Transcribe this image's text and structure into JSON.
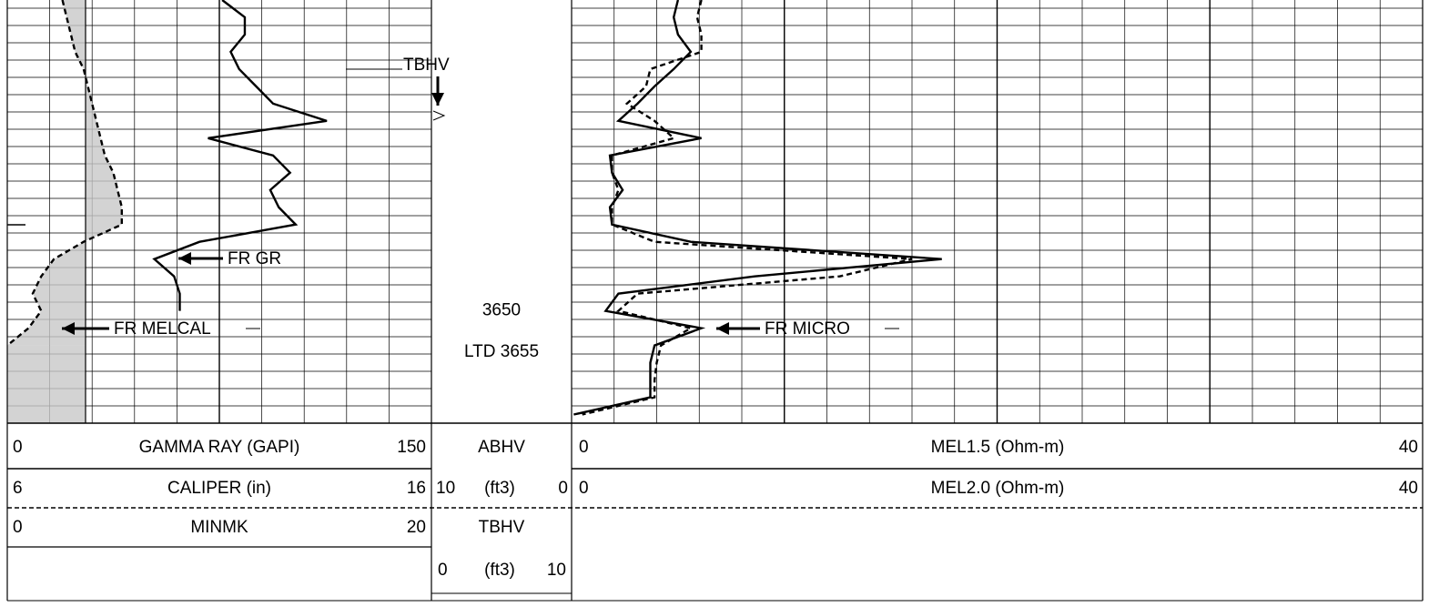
{
  "chart_data": {
    "type": "well_log",
    "depth_lim": [
      3614,
      3663
    ],
    "depth_ticks": [
      3650
    ],
    "annotations": {
      "tbhv": "TBHV",
      "fr_gr": "FR GR",
      "fr_melcal": "FR MELCAL",
      "fr_micro": "FR MICRO",
      "ltd": "LTD 3655"
    },
    "left_track": {
      "curves": [
        {
          "name": "GAMMA RAY (GAPI)",
          "lim": [
            0,
            150
          ],
          "dash": false,
          "color": "#000000",
          "depths": [
            3614,
            3616,
            3618,
            3620,
            3622,
            3624,
            3626,
            3628,
            3630,
            3632,
            3634,
            3636,
            3638,
            3640,
            3642,
            3644,
            3646,
            3648,
            3650
          ],
          "values": [
            76,
            84,
            84,
            79,
            82,
            88,
            94,
            113,
            71,
            94,
            100,
            93,
            96,
            102,
            68,
            52,
            59,
            61,
            61
          ]
        },
        {
          "name": "CALIPER (in)",
          "lim": [
            6,
            16
          ],
          "dash": true,
          "color": "#000000",
          "depths": [
            3614,
            3616,
            3618,
            3620,
            3622,
            3624,
            3626,
            3628,
            3630,
            3632,
            3634,
            3636,
            3638,
            3640,
            3642,
            3644,
            3646,
            3648,
            3650,
            3652,
            3654
          ],
          "values": [
            7.3,
            7.4,
            7.5,
            7.6,
            7.8,
            7.9,
            8.0,
            8.1,
            8.2,
            8.3,
            8.5,
            8.6,
            8.7,
            8.7,
            7.8,
            7.1,
            6.8,
            6.6,
            6.8,
            6.5,
            6.0
          ]
        }
      ],
      "extra": {
        "name": "MINMK",
        "lim": [
          0,
          20
        ]
      }
    },
    "depth_track": {
      "abhv": {
        "name": "ABHV",
        "unit": "(ft3)",
        "lim": [
          10,
          0
        ]
      },
      "tbhv": {
        "name": "TBHV",
        "unit": "(ft3)",
        "lim": [
          0,
          10
        ]
      }
    },
    "right_track": {
      "curves": [
        {
          "name": "MEL1.5 (Ohm-m)",
          "lim": [
            0,
            40
          ],
          "dash": false,
          "color": "#000000",
          "depths": [
            3614,
            3616,
            3618,
            3620,
            3622,
            3624,
            3626,
            3628,
            3630,
            3632,
            3634,
            3636,
            3638,
            3640,
            3642,
            3644,
            3646,
            3648,
            3650,
            3652,
            3654,
            3656,
            3658,
            3660,
            3662
          ],
          "values": [
            5.0,
            4.8,
            5.0,
            5.6,
            4.8,
            3.9,
            3.1,
            2.2,
            6.1,
            1.8,
            1.9,
            2.4,
            1.8,
            1.9,
            5.6,
            17.4,
            8.6,
            2.2,
            1.6,
            6.1,
            3.9,
            3.7,
            3.7,
            3.7,
            0.1
          ]
        },
        {
          "name": "MEL2.0 (Ohm-m)",
          "lim": [
            0,
            40
          ],
          "dash": true,
          "color": "#000000",
          "depths": [
            3614,
            3616,
            3618,
            3620,
            3622,
            3624,
            3626,
            3628,
            3630,
            3632,
            3634,
            3636,
            3638,
            3640,
            3642,
            3644,
            3646,
            3648,
            3650,
            3652,
            3654,
            3656,
            3658,
            3660,
            3662
          ],
          "values": [
            6.1,
            5.9,
            6.1,
            6.1,
            3.7,
            3.5,
            2.6,
            3.9,
            4.8,
            1.9,
            1.9,
            2.2,
            1.9,
            1.9,
            3.9,
            16.0,
            12.6,
            3.1,
            2.2,
            5.6,
            4.2,
            4.0,
            3.9,
            3.9,
            0.5
          ]
        }
      ]
    }
  }
}
